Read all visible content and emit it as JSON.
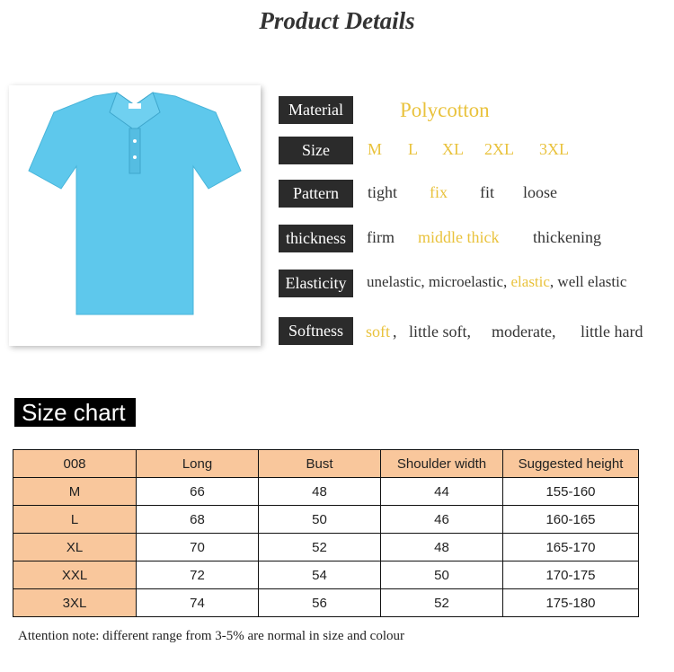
{
  "title": "Product Details",
  "specs": {
    "material": {
      "label": "Material",
      "value": "Polycotton"
    },
    "size": {
      "label": "Size",
      "options": [
        "M",
        "L",
        "XL",
        "2XL",
        "3XL"
      ]
    },
    "pattern": {
      "label": "Pattern",
      "options": [
        "tight",
        "fix",
        "fit",
        "loose"
      ],
      "selected": "fix"
    },
    "thickness": {
      "label": "thickness",
      "options": [
        "firm",
        "middle thick",
        "thickening"
      ],
      "selected": "middle thick"
    },
    "elasticity": {
      "label": "Elasticity",
      "options": [
        "unelastic, ",
        "microelastic, ",
        "elastic",
        ", well elastic"
      ],
      "selected": "elastic"
    },
    "softness": {
      "label": "Softness",
      "options": [
        "soft",
        ",   little soft,",
        "moderate,",
        "little hard"
      ],
      "selected": "soft"
    }
  },
  "highlight_color": "#e9c23c",
  "shirt_color": "#5ec8ec",
  "size_chart": {
    "title": "Size chart",
    "headers": [
      "008",
      "Long",
      "Bust",
      "Shoulder width",
      "Suggested height"
    ],
    "rows": [
      [
        "M",
        "66",
        "48",
        "44",
        "155-160"
      ],
      [
        "L",
        "68",
        "50",
        "46",
        "160-165"
      ],
      [
        "XL",
        "70",
        "52",
        "48",
        "165-170"
      ],
      [
        "XXL",
        "72",
        "54",
        "50",
        "170-175"
      ],
      [
        "3XL",
        "74",
        "56",
        "52",
        "175-180"
      ]
    ],
    "note": "Attention note: different range from 3-5% are normal in size and colour"
  }
}
